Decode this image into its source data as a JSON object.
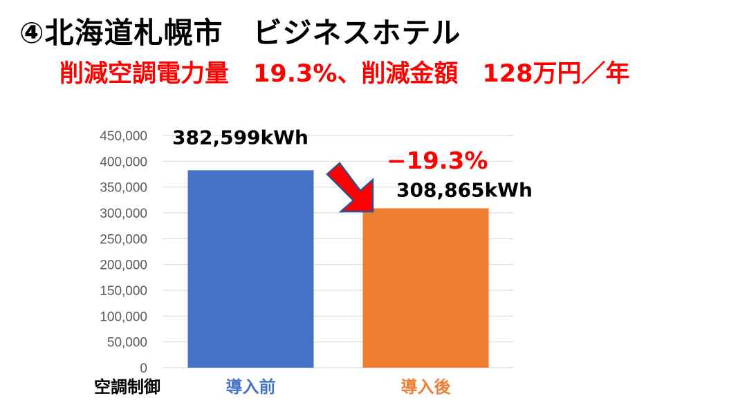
{
  "title": "④北海道札幌市　ビジネスホテル",
  "subtitle": "削減空調電力量　19.3%、削減金額　128万円／年",
  "chart_data": {
    "type": "bar",
    "xlabel": "空調制御",
    "categories": [
      "導入前",
      "導入後"
    ],
    "values": [
      382599,
      308865
    ],
    "data_labels": [
      "382,599kWh",
      "308,865kWh"
    ],
    "ylim": [
      0,
      450000
    ],
    "yticks": [
      0,
      50000,
      100000,
      150000,
      200000,
      250000,
      300000,
      350000,
      400000,
      450000
    ],
    "ytick_labels": [
      "0",
      "50,000",
      "100,000",
      "150,000",
      "200,000",
      "250,000",
      "300,000",
      "350,000",
      "400,000",
      "450,000"
    ],
    "grid": true,
    "annotation": "−19.3%",
    "colors": {
      "bars": [
        "#4472c4",
        "#ed7d31"
      ],
      "category_labels": [
        "#4472c4",
        "#ed7d31"
      ],
      "arrow_fill": "#ff0000",
      "arrow_stroke": "#2f4f8f",
      "gridline": "#d9d9d9"
    }
  }
}
